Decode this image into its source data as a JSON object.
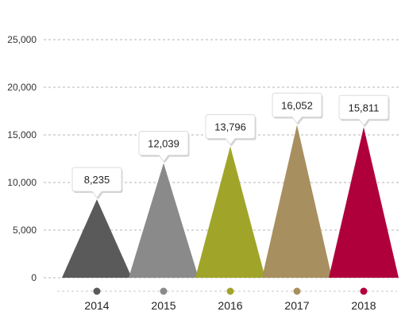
{
  "chart_data": {
    "type": "bar",
    "categories": [
      "2014",
      "2015",
      "2016",
      "2017",
      "2018"
    ],
    "values": [
      8235,
      12039,
      13796,
      16052,
      15811
    ],
    "value_labels": [
      "8,235",
      "12,039",
      "13,796",
      "16,052",
      "15,811"
    ],
    "colors": [
      "#5a5a5a",
      "#8a8a8a",
      "#a0a52a",
      "#a88f5f",
      "#b0003c"
    ],
    "ylim": [
      0,
      25000
    ],
    "yticks": [
      0,
      5000,
      10000,
      15000,
      20000,
      25000
    ],
    "ytick_labels": [
      "0",
      "5,000",
      "10,000",
      "15,000",
      "20,000",
      "25,000"
    ],
    "title": "",
    "xlabel": "",
    "ylabel": "",
    "grid": true,
    "mark_shape": "triangle"
  }
}
